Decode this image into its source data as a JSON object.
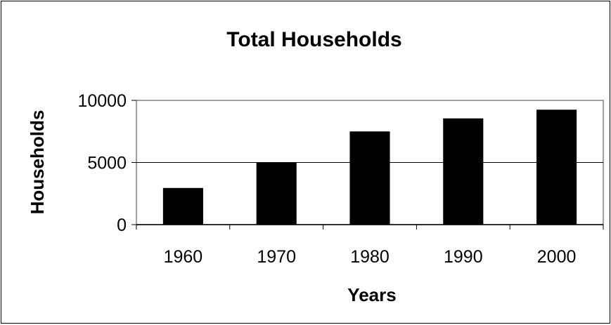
{
  "chart_data": {
    "type": "bar",
    "title": "Total Households",
    "xlabel": "Years",
    "ylabel": "Households",
    "categories": [
      "1960",
      "1970",
      "1980",
      "1990",
      "2000"
    ],
    "values": [
      2950,
      4980,
      7500,
      8550,
      9250
    ],
    "ylim": [
      0,
      10000
    ],
    "yticks": [
      "0",
      "5000",
      "10000"
    ],
    "grid": true,
    "legend": "none",
    "bar_color": "#000000",
    "plot_border_color": "#808080"
  }
}
